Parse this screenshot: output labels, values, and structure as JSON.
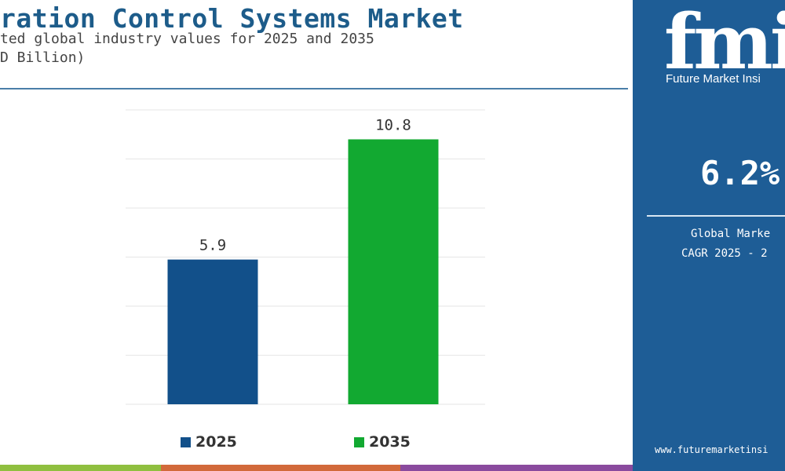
{
  "header": {
    "title": "ration Control Systems Market",
    "subtitle": "ted global industry values for 2025 and 2035",
    "unit": "D Billion)"
  },
  "chart_data": {
    "type": "bar",
    "categories": [
      "2025",
      "2035"
    ],
    "values": [
      5.9,
      10.8
    ],
    "data_labels": [
      "5.9",
      "10.8"
    ],
    "colors": [
      "#12508a",
      "#12a931"
    ],
    "ylim": [
      0,
      12
    ],
    "grid": true,
    "legend": "bottom"
  },
  "legend": {
    "items": [
      {
        "label": "2025",
        "color": "#12508a"
      },
      {
        "label": "2035",
        "color": "#12a931"
      }
    ]
  },
  "panel": {
    "logo_letters": "fmi",
    "brand_name": "Future Market Insi",
    "cagr_value": "6.2%",
    "cagr_label_1": "Global Marke",
    "cagr_label_2": "CAGR 2025 - 2",
    "website": "www.futuremarketinsi",
    "background_color": "#1e5d96"
  },
  "bottom_strip_colors": [
    "#8fbf3f",
    "#d2693a",
    "#8a4a9e"
  ]
}
